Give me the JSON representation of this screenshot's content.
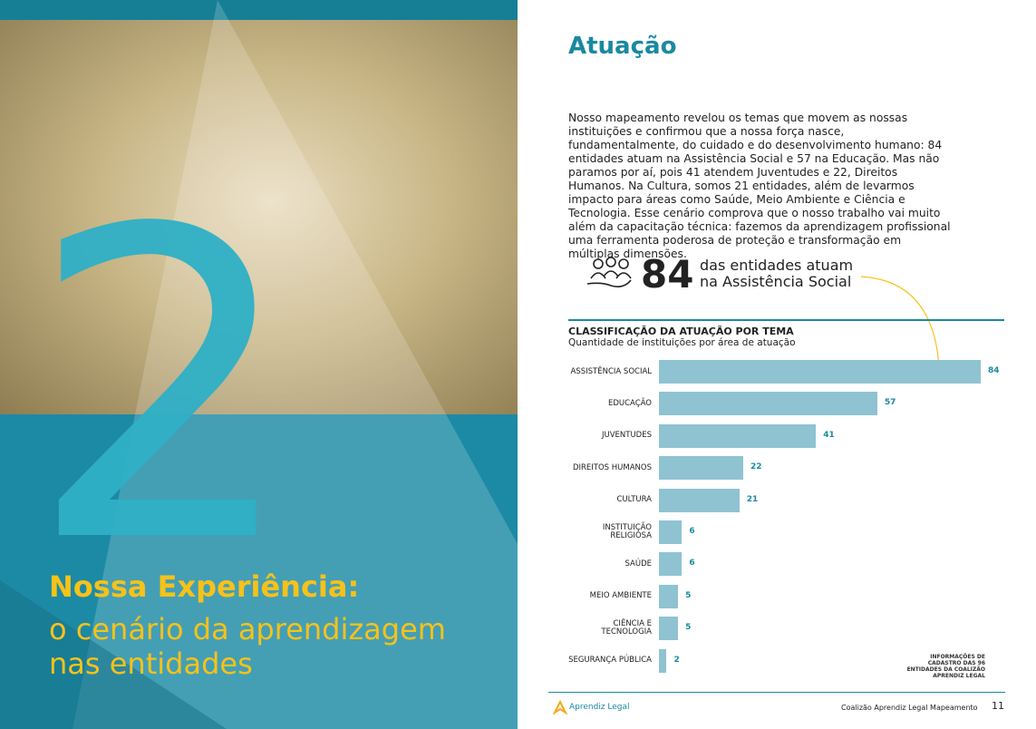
{
  "left": {
    "number": "2",
    "title": "Nossa Experiência:",
    "subtitle": "o cenário da aprendizagem nas entidades"
  },
  "right": {
    "heading": "Atuação",
    "paragraph": "Nosso mapeamento revelou os temas que movem as nossas instituições e confirmou que a nossa força nasce, fundamentalmente, do cuidado e do desenvolvimento humano: 84 entidades atuam na Assistência Social e 57 na Educação. Mas não paramos por aí, pois 41 atendem Juventudes e 22, Direitos Humanos. Na Cultura, somos 21 entidades, além de levarmos impacto para áreas como Saúde, Meio Ambiente e Ciência e Tecnologia. Esse cenário comprova que o nosso trabalho vai muito além da capacitação técnica: fazemos da aprendizagem profissional uma ferramenta poderosa de proteção e transformação em múltiplas dimensões.",
    "stat_number": "84",
    "stat_text": "das entidades atuam na Assistência Social",
    "source": "INFORMAÇÕES DE CADASTRO DAS 96 ENTIDADES DA COALIZÃO APRENDIZ LEGAL",
    "footer_logo": "Aprendiz Legal",
    "footer_text": "Coalizão Aprendiz Legal Mapeamento",
    "page_number": "11"
  },
  "chart_data": {
    "type": "bar",
    "orientation": "horizontal",
    "title": "CLASSIFICAÇÃO DA ATUAÇÃO POR TEMA",
    "subtitle": "Quantidade de instituições por área de atuação",
    "categories": [
      "ASSISTÊNCIA SOCIAL",
      "EDUCAÇÃO",
      "JUVENTUDES",
      "DIREITOS HUMANOS",
      "CULTURA",
      "INSTITUIÇÃO RELIGIOSA",
      "SAÚDE",
      "MEIO AMBIENTE",
      "CIÊNCIA E TECNOLOGIA",
      "SEGURANÇA PÚBLICA"
    ],
    "values": [
      84,
      57,
      41,
      22,
      21,
      6,
      6,
      5,
      5,
      2
    ],
    "color": "#8fc3d1"
  }
}
